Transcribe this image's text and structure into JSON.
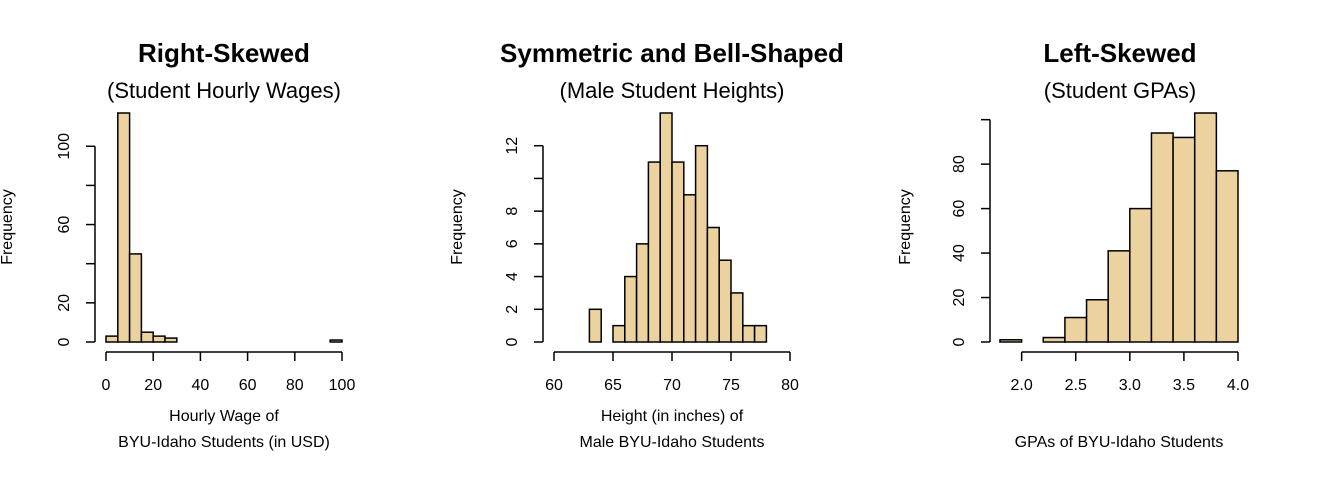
{
  "colors": {
    "bar_fill": "#ebd29e",
    "stroke": "#000000"
  },
  "chart_data": [
    {
      "type": "bar",
      "title": "Right-Skewed",
      "subtitle": "(Student Hourly Wages)",
      "xlabel": [
        "Hourly Wage of",
        "BYU-Idaho Students (in USD)"
      ],
      "ylabel": "Frequency",
      "bins": [
        [
          0,
          5
        ],
        [
          5,
          10
        ],
        [
          10,
          15
        ],
        [
          15,
          20
        ],
        [
          20,
          25
        ],
        [
          25,
          30
        ],
        [
          30,
          35
        ],
        [
          35,
          40
        ],
        [
          40,
          45
        ],
        [
          45,
          50
        ],
        [
          50,
          55
        ],
        [
          55,
          60
        ],
        [
          60,
          65
        ],
        [
          65,
          70
        ],
        [
          70,
          75
        ],
        [
          75,
          80
        ],
        [
          80,
          85
        ],
        [
          85,
          90
        ],
        [
          90,
          95
        ],
        [
          95,
          100
        ]
      ],
      "values": [
        3,
        117,
        45,
        5,
        3,
        2,
        0,
        0,
        0,
        0,
        0,
        0,
        0,
        0,
        0,
        0,
        0,
        0,
        0,
        1
      ],
      "xlim": [
        0,
        100
      ],
      "ylim": [
        0,
        117
      ],
      "xticks": [
        0,
        20,
        40,
        60,
        80,
        100
      ],
      "yticks": [
        0,
        20,
        40,
        60,
        80,
        100
      ],
      "ytick_labels": [
        "0",
        "20",
        "",
        "60",
        "",
        "100"
      ],
      "grid": false,
      "legend": "none"
    },
    {
      "type": "bar",
      "title": "Symmetric and Bell-Shaped",
      "subtitle": "(Male Student Heights)",
      "xlabel": [
        "Height (in inches) of",
        "Male BYU-Idaho Students"
      ],
      "ylabel": "Frequency",
      "bins": [
        [
          63,
          64
        ],
        [
          64,
          65
        ],
        [
          65,
          66
        ],
        [
          66,
          67
        ],
        [
          67,
          68
        ],
        [
          68,
          69
        ],
        [
          69,
          70
        ],
        [
          70,
          71
        ],
        [
          71,
          72
        ],
        [
          72,
          73
        ],
        [
          73,
          74
        ],
        [
          74,
          75
        ],
        [
          75,
          76
        ],
        [
          76,
          77
        ],
        [
          77,
          78
        ]
      ],
      "values": [
        2,
        0,
        1,
        4,
        6,
        11,
        14,
        11,
        9,
        12,
        7,
        5,
        3,
        1,
        1
      ],
      "xlim": [
        60,
        80
      ],
      "ylim": [
        0,
        14
      ],
      "xticks": [
        60,
        65,
        70,
        75,
        80
      ],
      "yticks": [
        0,
        2,
        4,
        6,
        8,
        10,
        12
      ],
      "ytick_labels": [
        "0",
        "2",
        "4",
        "6",
        "8",
        "",
        "12"
      ],
      "grid": false,
      "legend": "none"
    },
    {
      "type": "bar",
      "title": "Left-Skewed",
      "subtitle": "(Student GPAs)",
      "xlabel": [
        "GPAs of BYU-Idaho Students"
      ],
      "ylabel": "Frequency",
      "bins": [
        [
          1.8,
          2.0
        ],
        [
          2.0,
          2.2
        ],
        [
          2.2,
          2.4
        ],
        [
          2.4,
          2.6
        ],
        [
          2.6,
          2.8
        ],
        [
          2.8,
          3.0
        ],
        [
          3.0,
          3.2
        ],
        [
          3.2,
          3.4
        ],
        [
          3.4,
          3.6
        ],
        [
          3.6,
          3.8
        ],
        [
          3.8,
          4.0
        ]
      ],
      "values": [
        1,
        0,
        2,
        11,
        19,
        41,
        60,
        94,
        92,
        103,
        77
      ],
      "xlim": [
        1.8,
        4.0
      ],
      "ylim": [
        0,
        100
      ],
      "xticks": [
        2.0,
        2.5,
        3.0,
        3.5,
        4.0
      ],
      "xtick_labels": [
        "2.0",
        "2.5",
        "3.0",
        "3.5",
        "4.0"
      ],
      "yticks": [
        0,
        20,
        40,
        60,
        80,
        100
      ],
      "ytick_labels": [
        "0",
        "20",
        "40",
        "60",
        "80",
        ""
      ],
      "grid": false,
      "legend": "none"
    }
  ]
}
